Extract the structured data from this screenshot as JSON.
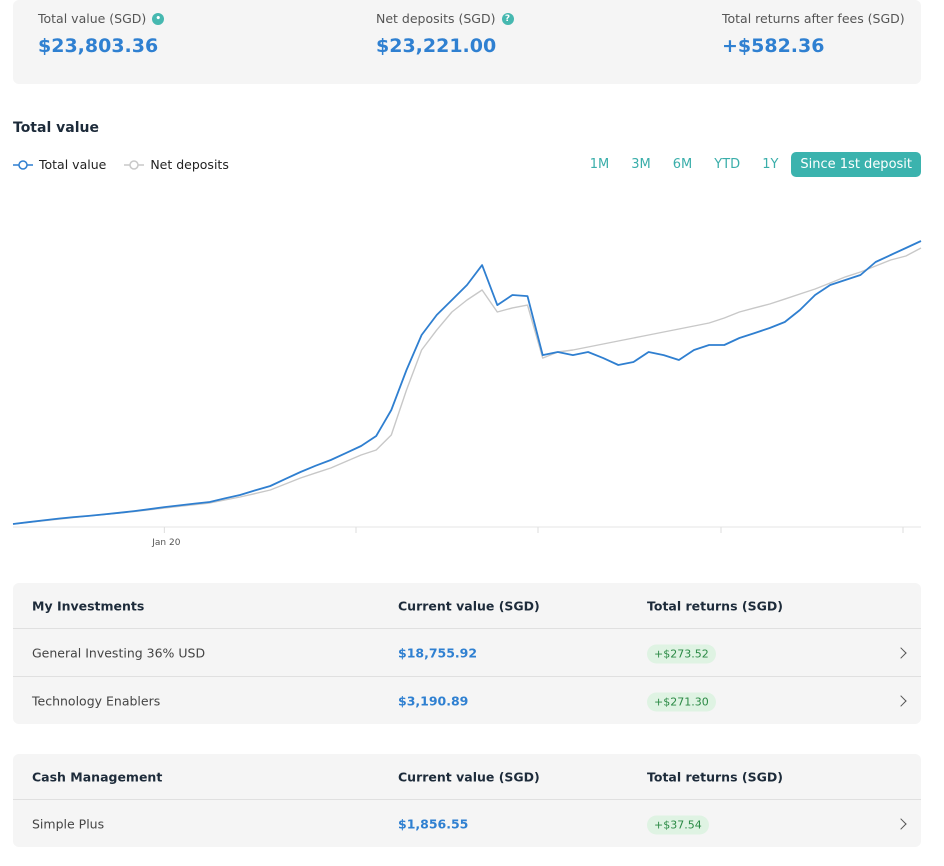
{
  "summary": [
    {
      "label": "Total value (SGD)",
      "value": "$23,803.36"
    },
    {
      "label": "Net deposits (SGD)",
      "value": "$23,221.00"
    },
    {
      "label": "Total returns after fees (SGD)",
      "value": "+$582.36"
    }
  ],
  "range_buttons": [
    "1M",
    "3M",
    "6M",
    "YTD",
    "1Y",
    "Since 1st deposit"
  ],
  "chart_data": {
    "type": "line",
    "title": "Total value",
    "categories": [
      null,
      null,
      null,
      null,
      null,
      null,
      null,
      null,
      null,
      null,
      "Jan 20",
      null,
      null,
      null,
      null,
      null,
      null,
      null,
      null,
      null,
      null,
      null,
      null,
      null,
      null,
      null,
      null,
      null,
      null,
      null,
      null,
      null,
      null,
      null,
      null,
      null,
      null,
      null,
      null,
      null,
      null,
      null,
      null,
      null,
      null,
      null,
      null,
      null,
      null,
      null,
      null,
      null,
      null,
      null,
      null,
      null,
      null,
      null,
      null,
      null,
      null
    ],
    "series": [
      {
        "name": "Total value",
        "color": "#2f7fd0",
        "values": [
          250,
          400,
          550,
          700,
          820,
          920,
          1050,
          1180,
          1320,
          1480,
          1660,
          1800,
          1950,
          2080,
          2380,
          2660,
          3050,
          3410,
          4000,
          4580,
          5100,
          5580,
          6150,
          6740,
          7570,
          9740,
          13070,
          15980,
          17640,
          18890,
          20140,
          21800,
          18470,
          19310,
          19220,
          14310,
          14560,
          14310,
          14560,
          14060,
          13480,
          13730,
          14560,
          14310,
          13900,
          14730,
          15150,
          15150,
          15730,
          16140,
          16560,
          17060,
          18060,
          19310,
          20140,
          20560,
          20970,
          22050,
          22640,
          23220,
          23800
        ]
      },
      {
        "name": "Net deposits",
        "color": "#c8c8c8",
        "values": [
          250,
          390,
          520,
          650,
          790,
          920,
          1040,
          1160,
          1290,
          1430,
          1580,
          1720,
          1860,
          2000,
          2250,
          2500,
          2780,
          3080,
          3580,
          4080,
          4500,
          4910,
          5450,
          5990,
          6410,
          7660,
          11400,
          14730,
          16390,
          17890,
          18890,
          19720,
          17890,
          18230,
          18470,
          14060,
          14560,
          14730,
          14980,
          15230,
          15480,
          15730,
          15980,
          16230,
          16480,
          16730,
          16980,
          17390,
          17890,
          18230,
          18560,
          18970,
          19390,
          19810,
          20310,
          20810,
          21220,
          21720,
          22220,
          22550,
          23220
        ]
      }
    ],
    "ylim": [
      0,
      27630
    ]
  },
  "tables": [
    {
      "header": [
        "My Investments",
        "Current value (SGD)",
        "Total returns (SGD)"
      ],
      "rows": [
        [
          "General Investing 36% USD",
          "$18,755.92",
          "+$273.52"
        ],
        [
          "Technology Enablers",
          "$3,190.89",
          "+$271.30"
        ]
      ]
    },
    {
      "header": [
        "Cash Management",
        "Current value (SGD)",
        "Total returns (SGD)"
      ],
      "rows": [
        [
          "Simple Plus",
          "$1,856.55",
          "+$37.54"
        ]
      ]
    }
  ]
}
